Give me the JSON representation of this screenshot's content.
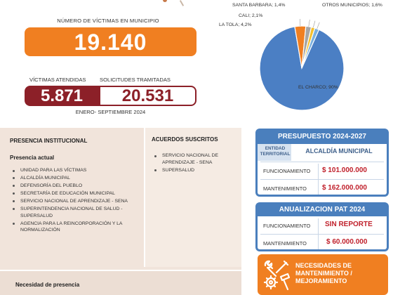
{
  "header": {
    "victimas_title": "NÚMERO DE VÍCTIMAS EN MUNICIPIO",
    "victimas_value": "19.140",
    "atendidas_label": "VÍCTIMAS ATENDIDAS",
    "solicitudes_label": "SOLICITUDES TRAMITADAS",
    "atendidas_value": "5.871",
    "solicitudes_value": "20.531",
    "periodo": "ENERO- SEPTIEMBRE 2024"
  },
  "chart_data": {
    "type": "pie",
    "slices": [
      {
        "label": "EL CHARCO; 90%",
        "name": "EL CHARCO",
        "value": 90,
        "color": "#4b7fc4"
      },
      {
        "label": "LA TOLA; 4,2%",
        "name": "LA TOLA",
        "value": 4.2,
        "color": "#f07f21"
      },
      {
        "label": "CALI; 2,1%",
        "name": "CALI",
        "value": 2.1,
        "color": "#a5a5a5"
      },
      {
        "label": "SANTA BARBARA; 1,4%",
        "name": "SANTA BARBARA",
        "value": 1.4,
        "color": "#f5c02c"
      },
      {
        "label": "OTROS MUNICIPIOS; 1,6%",
        "name": "OTROS MUNICIPIOS",
        "value": 1.6,
        "color": "#7ab0de"
      }
    ]
  },
  "presencia": {
    "title": "PRESENCIA INSTITUCIONAL",
    "subtitle": "Presencia actual",
    "items": [
      "UNIDAD PARA LAS VÍCTIMAS",
      "ALCALDÍA MUNICIPAL",
      "DEFENSORÍA DEL PUEBLO",
      "SECRETARÍA DE EDUCACIÓN MUNICIPAL",
      "SERVICIO NACIONAL DE APRENDIZAJE - SENA",
      "SUPERINTENDENCIA NACIONAL DE SALUD - SUPERSALUD",
      "AGENCIA PARA LA REINCORPORACIÓN Y LA NORMALIZACIÓN"
    ],
    "necesidad_title": "Necesidad de presencia"
  },
  "acuerdos": {
    "title": "ACUERDOS SUSCRITOS",
    "items": [
      "SERVICIO NACIONAL DE APRENDIZAJE - SENA",
      "SUPERSALUD"
    ]
  },
  "presupuesto": {
    "title": "PRESUPUESTO 2024-2027",
    "col1": "ENTIDAD TERRITORIAL",
    "col2": "ALCALDÍA MUNICIPAL",
    "rows": [
      {
        "label": "FUNCIONAMIENTO",
        "value": "$ 101.000.000"
      },
      {
        "label": "MANTENIMIENTO",
        "value": "$ 162.000.000"
      }
    ]
  },
  "pat": {
    "title": "ANUALIZACION PAT 2024",
    "rows": [
      {
        "label": "FUNCIONAMIENTO",
        "value": "SIN REPORTE"
      },
      {
        "label": "MANTENIMIENTO",
        "value": "$ 60.000.000"
      }
    ]
  },
  "necesidades": {
    "title": "NECESIDADES DE MANTENIMIENTO / MEJORAMIENTO",
    "icon": "tools-icon"
  },
  "colors": {
    "orange": "#f07f21",
    "maroon": "#8c2028",
    "blue": "#4a7fbd",
    "red_value": "#c0202b",
    "panel": "#f1e4db"
  }
}
